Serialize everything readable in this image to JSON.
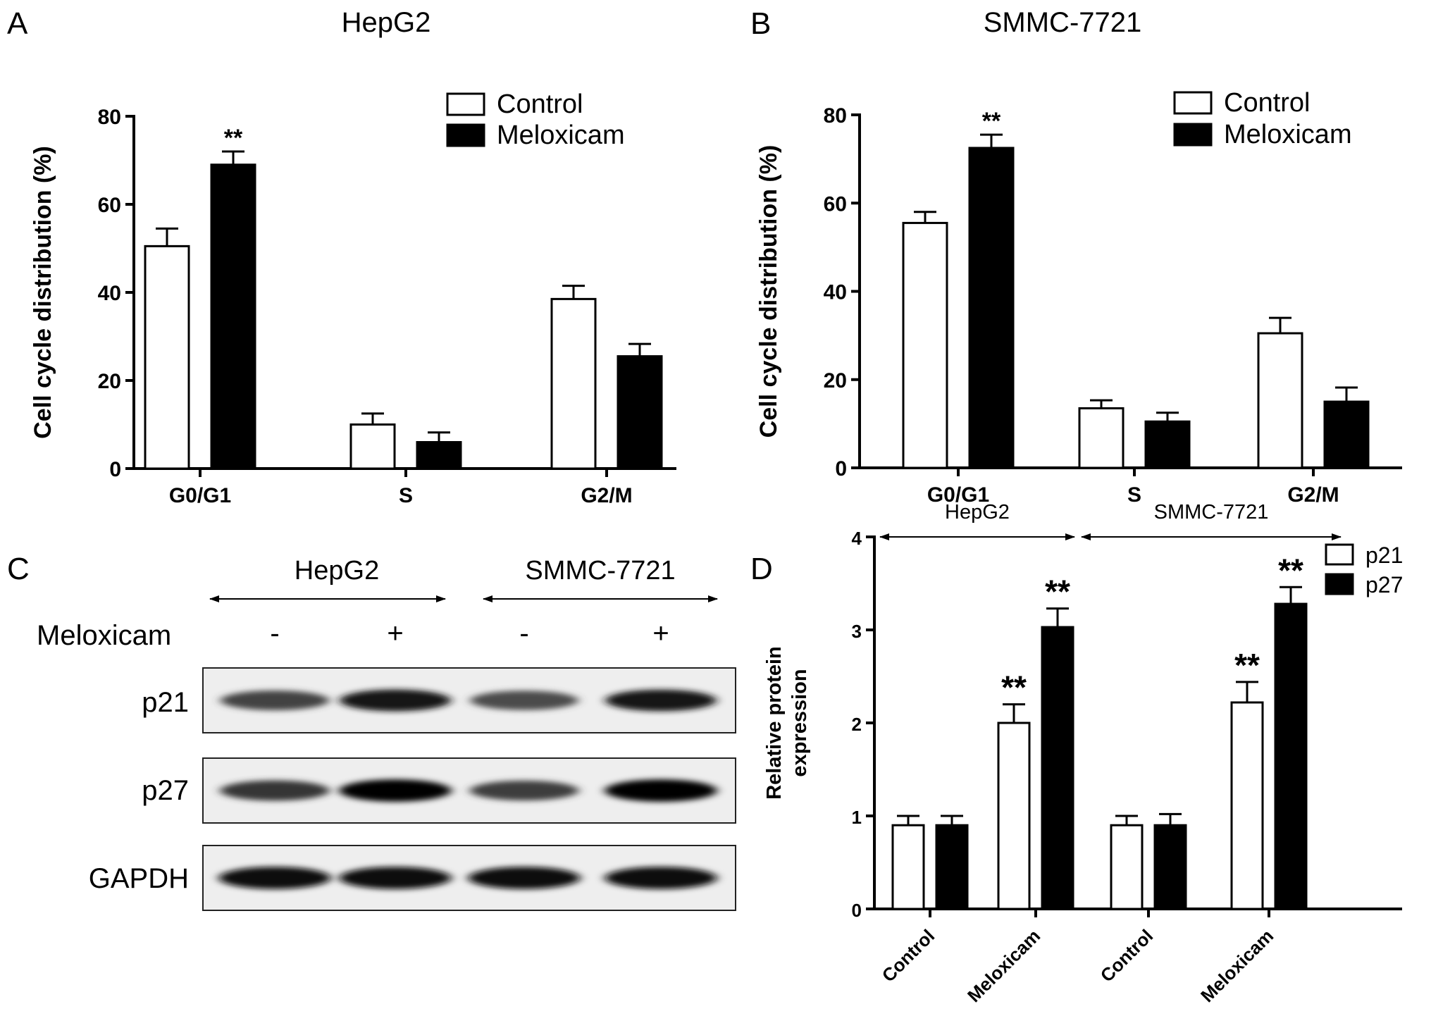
{
  "panels": {
    "A": {
      "letter": "A",
      "title": "HepG2"
    },
    "B": {
      "letter": "B",
      "title": "SMMC-7721"
    },
    "C": {
      "letter": "C"
    },
    "D": {
      "letter": "D"
    }
  },
  "chart_data": [
    {
      "id": "A",
      "type": "bar",
      "title": "HepG2",
      "xlabel": "",
      "ylabel": "Cell cycle distribution (%)",
      "categories": [
        "G0/G1",
        "S",
        "G2/M"
      ],
      "ylim": [
        0,
        80
      ],
      "yticks": [
        "0",
        "20",
        "40",
        "60",
        "80"
      ],
      "series": [
        {
          "name": "Control",
          "color": "#ffffff",
          "values": [
            50.5,
            10,
            38.5
          ],
          "errors": [
            4,
            2.5,
            3
          ]
        },
        {
          "name": "Meloxicam",
          "color": "#000000",
          "values": [
            69,
            6,
            25.5
          ],
          "errors": [
            3,
            2.2,
            2.8
          ]
        }
      ],
      "annotations": [
        {
          "category": 0,
          "series": 1,
          "text": "**"
        }
      ],
      "legend": "top-right",
      "grid": false
    },
    {
      "id": "B",
      "type": "bar",
      "title": "SMMC-7721",
      "xlabel": "",
      "ylabel": "Cell cycle distribution (%)",
      "categories": [
        "G0/G1",
        "S",
        "G2/M"
      ],
      "ylim": [
        0,
        80
      ],
      "yticks": [
        "0",
        "20",
        "40",
        "60",
        "80"
      ],
      "series": [
        {
          "name": "Control",
          "color": "#ffffff",
          "values": [
            55.5,
            13.5,
            30.5
          ],
          "errors": [
            2.5,
            1.8,
            3.5
          ]
        },
        {
          "name": "Meloxicam",
          "color": "#000000",
          "values": [
            72.5,
            10.5,
            15
          ],
          "errors": [
            3,
            2,
            3.2
          ]
        }
      ],
      "annotations": [
        {
          "category": 0,
          "series": 1,
          "text": "**"
        }
      ],
      "legend": "top-right",
      "grid": false
    },
    {
      "id": "D",
      "type": "bar",
      "title": "",
      "xlabel": "",
      "ylabel": "Relative protein expression",
      "ylabel_lines": [
        "Relative protein",
        "expression"
      ],
      "categories": [
        "Control",
        "Meloxicam",
        "Control",
        "Meloxicam"
      ],
      "groups": [
        {
          "label": "HepG2",
          "categories": [
            0,
            1
          ]
        },
        {
          "label": "SMMC-7721",
          "categories": [
            2,
            3
          ]
        }
      ],
      "ylim": [
        0,
        4
      ],
      "yticks": [
        "0",
        "1",
        "2",
        "3",
        "4"
      ],
      "series": [
        {
          "name": "p21",
          "color": "#ffffff",
          "values": [
            0.9,
            2.0,
            0.9,
            2.22
          ],
          "errors": [
            0.1,
            0.2,
            0.1,
            0.22
          ]
        },
        {
          "name": "p27",
          "color": "#000000",
          "values": [
            0.9,
            3.03,
            0.9,
            3.28
          ],
          "errors": [
            0.1,
            0.2,
            0.12,
            0.18
          ]
        }
      ],
      "annotations": [
        {
          "category": 1,
          "series": 0,
          "text": "**"
        },
        {
          "category": 1,
          "series": 1,
          "text": "**"
        },
        {
          "category": 3,
          "series": 0,
          "text": "**"
        },
        {
          "category": 3,
          "series": 1,
          "text": "**"
        }
      ],
      "legend": "top-right",
      "grid": false
    }
  ],
  "western_blot": {
    "groups": [
      "HepG2",
      "SMMC-7721"
    ],
    "treatment_label": "Meloxicam",
    "treatment_marks": [
      "-",
      "+",
      "-",
      "+"
    ],
    "rows": [
      {
        "label": "p21",
        "intensity": [
          0.72,
          0.92,
          0.68,
          0.9
        ]
      },
      {
        "label": "p27",
        "intensity": [
          0.78,
          0.98,
          0.74,
          0.98
        ]
      },
      {
        "label": "GAPDH",
        "intensity": [
          0.97,
          0.97,
          0.97,
          0.97
        ]
      }
    ]
  }
}
